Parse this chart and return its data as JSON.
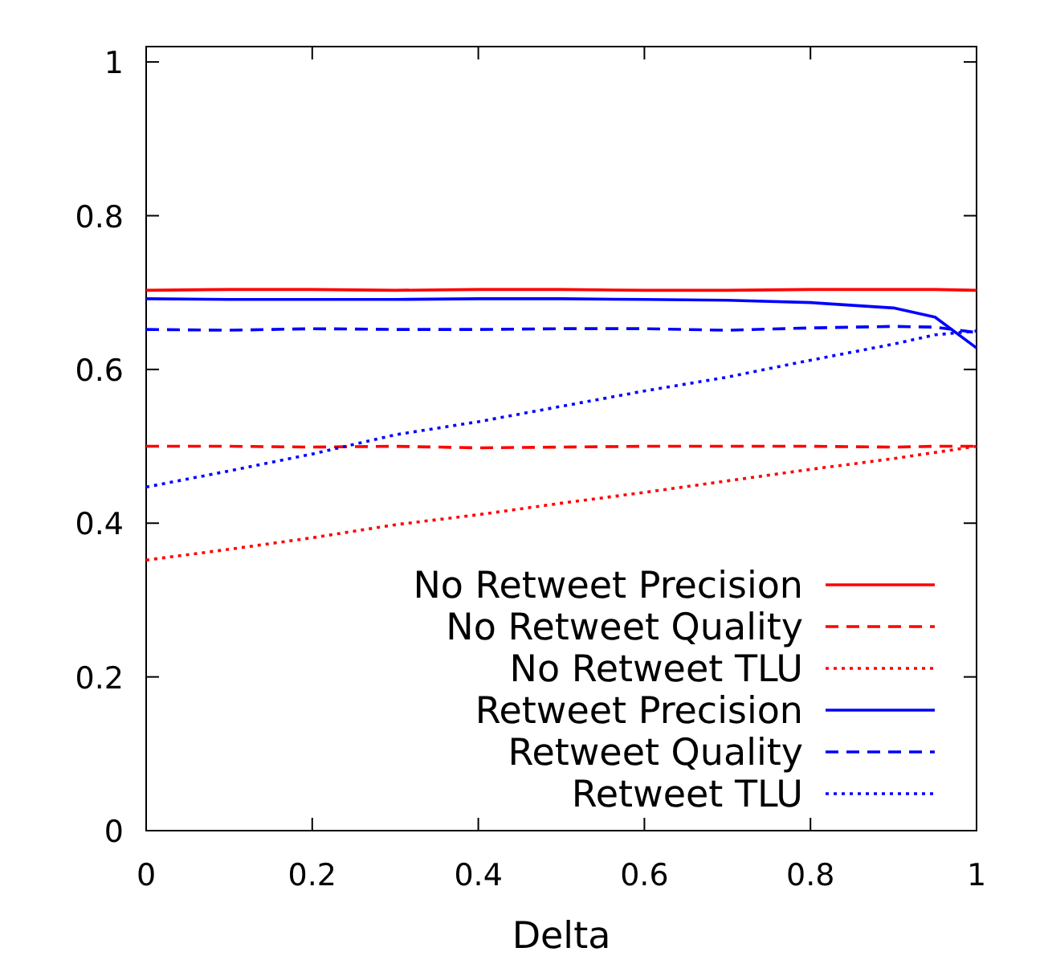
{
  "chart_data": {
    "type": "line",
    "xlabel": "Delta",
    "x": [
      0,
      0.1,
      0.2,
      0.3,
      0.4,
      0.5,
      0.6,
      0.7,
      0.8,
      0.9,
      0.95,
      1
    ],
    "xlim": [
      0,
      1
    ],
    "ylim": [
      0,
      1.02
    ],
    "xticks": [
      0,
      0.2,
      0.4,
      0.6,
      0.8,
      1
    ],
    "yticks": [
      0,
      0.2,
      0.4,
      0.6,
      0.8,
      1
    ],
    "grid": false,
    "legend": "bottom right",
    "marker": "none",
    "series": [
      {
        "name": "No Retweet Precision",
        "color": "#ff0000",
        "line_style": "solid",
        "values": [
          0.703,
          0.704,
          0.704,
          0.703,
          0.704,
          0.704,
          0.703,
          0.703,
          0.704,
          0.704,
          0.704,
          0.703
        ]
      },
      {
        "name": "No Retweet Quality",
        "color": "#ff0000",
        "line_style": "dashed",
        "values": [
          0.5,
          0.5,
          0.499,
          0.5,
          0.498,
          0.499,
          0.5,
          0.5,
          0.5,
          0.499,
          0.5,
          0.5
        ]
      },
      {
        "name": "No Retweet TLU",
        "color": "#ff0000",
        "line_style": "dotted",
        "values": [
          0.352,
          0.366,
          0.381,
          0.398,
          0.411,
          0.426,
          0.44,
          0.455,
          0.47,
          0.484,
          0.492,
          0.5
        ]
      },
      {
        "name": "Retweet Precision",
        "color": "#0000ff",
        "line_style": "solid",
        "values": [
          0.692,
          0.691,
          0.691,
          0.691,
          0.692,
          0.692,
          0.691,
          0.69,
          0.687,
          0.68,
          0.668,
          0.628
        ]
      },
      {
        "name": "Retweet Quality",
        "color": "#0000ff",
        "line_style": "dashed",
        "values": [
          0.652,
          0.651,
          0.653,
          0.652,
          0.652,
          0.653,
          0.653,
          0.651,
          0.654,
          0.656,
          0.655,
          0.648
        ]
      },
      {
        "name": "Retweet TLU",
        "color": "#0000ff",
        "line_style": "dotted",
        "values": [
          0.447,
          0.468,
          0.49,
          0.515,
          0.532,
          0.552,
          0.572,
          0.59,
          0.612,
          0.633,
          0.645,
          0.65
        ]
      }
    ]
  }
}
